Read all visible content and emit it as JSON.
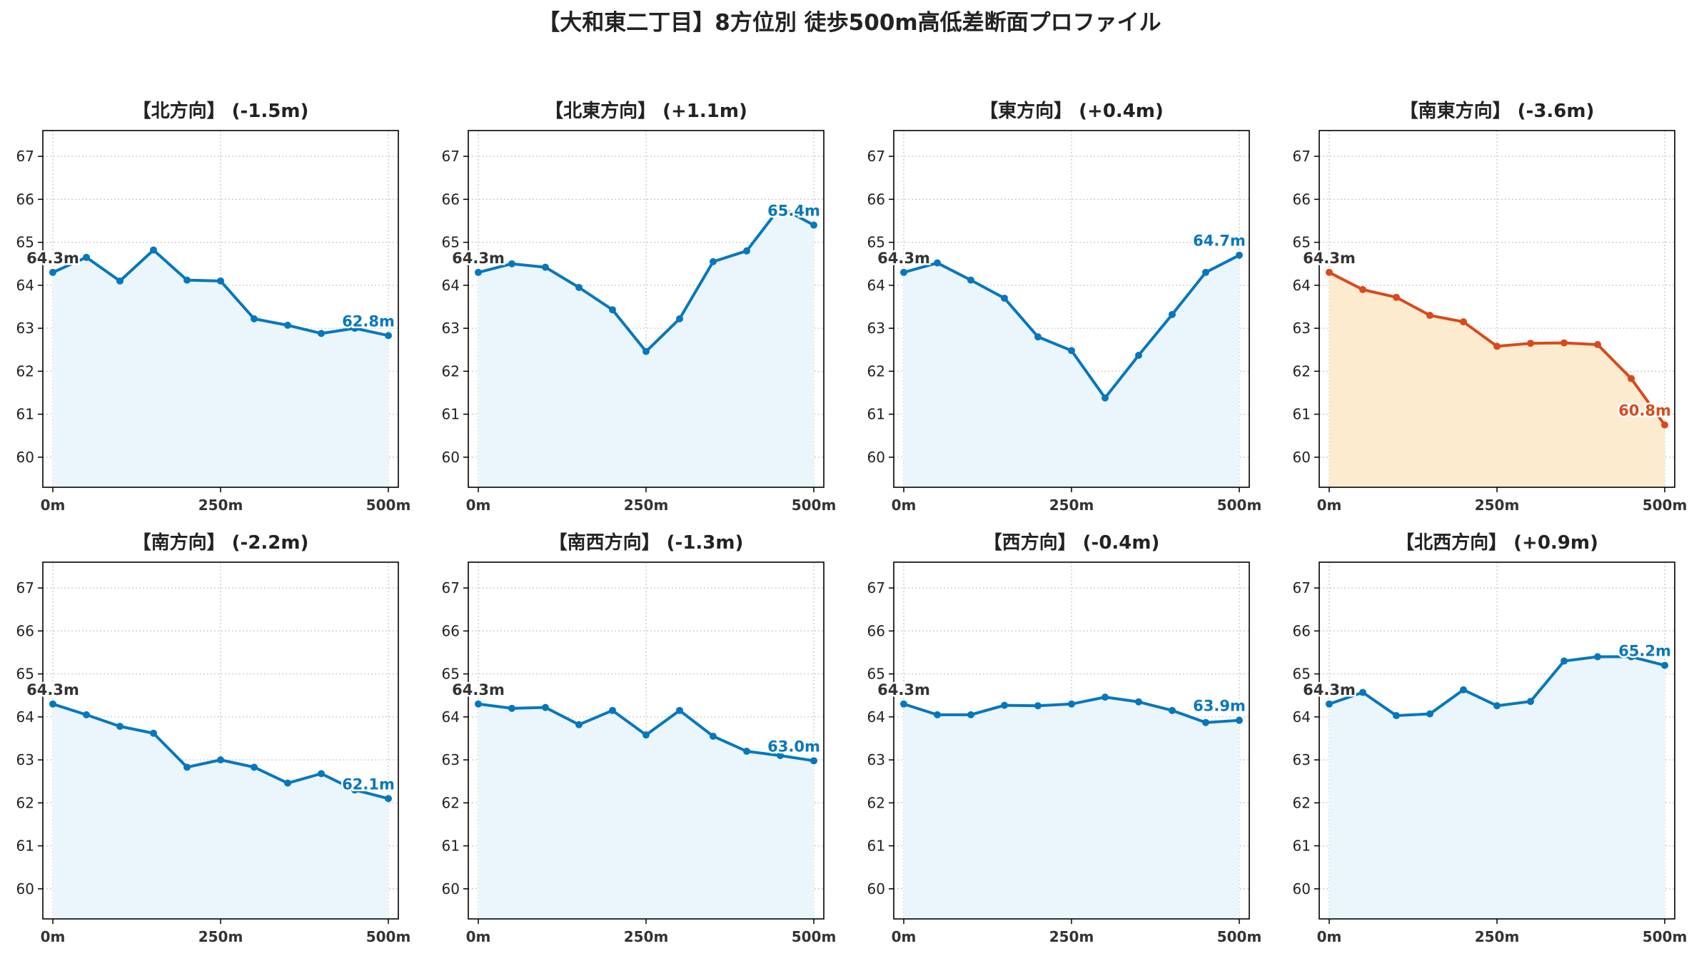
{
  "figure": {
    "title": "【大和東二丁目】8方位別 徒歩500m高低差断面プロファイル"
  },
  "colors": {
    "normal_line": "#0777bd",
    "normal_fill": "#eaf6fb",
    "highlight_line": "#d84a1b",
    "highlight_fill": "#fdebd0",
    "start_label": "#333333",
    "grid": "#c8c8c8",
    "axis": "#000000"
  },
  "chart_data": [
    {
      "type": "area",
      "title": "【北方向】 (-1.5m)",
      "x": [
        0,
        50,
        100,
        150,
        200,
        250,
        300,
        350,
        400,
        450,
        500
      ],
      "y": [
        64.3,
        64.65,
        64.1,
        64.82,
        64.12,
        64.1,
        63.22,
        63.07,
        62.88,
        63.0,
        62.83
      ],
      "start_label": "64.3m",
      "end_label": "62.8m",
      "highlight": false,
      "xticks": [
        "0m",
        "250m",
        "500m"
      ],
      "ylim": [
        59.3,
        67.6
      ],
      "yticks": [
        60,
        61,
        62,
        63,
        64,
        65,
        66,
        67
      ],
      "grid": true
    },
    {
      "type": "area",
      "title": "【北東方向】 (+1.1m)",
      "x": [
        0,
        50,
        100,
        150,
        200,
        250,
        300,
        350,
        400,
        450,
        500
      ],
      "y": [
        64.3,
        64.5,
        64.42,
        63.95,
        63.43,
        62.46,
        63.22,
        64.55,
        64.8,
        65.82,
        65.4
      ],
      "start_label": "64.3m",
      "end_label": "65.4m",
      "highlight": false,
      "xticks": [
        "0m",
        "250m",
        "500m"
      ],
      "ylim": [
        59.3,
        67.6
      ],
      "yticks": [
        60,
        61,
        62,
        63,
        64,
        65,
        66,
        67
      ],
      "grid": true
    },
    {
      "type": "area",
      "title": "【東方向】 (+0.4m)",
      "x": [
        0,
        50,
        100,
        150,
        200,
        250,
        300,
        350,
        400,
        450,
        500
      ],
      "y": [
        64.3,
        64.52,
        64.12,
        63.7,
        62.8,
        62.48,
        61.38,
        62.37,
        63.32,
        64.3,
        64.7
      ],
      "start_label": "64.3m",
      "end_label": "64.7m",
      "highlight": false,
      "xticks": [
        "0m",
        "250m",
        "500m"
      ],
      "ylim": [
        59.3,
        67.6
      ],
      "yticks": [
        60,
        61,
        62,
        63,
        64,
        65,
        66,
        67
      ],
      "grid": true
    },
    {
      "type": "area",
      "title": "【南東方向】 (-3.6m)",
      "x": [
        0,
        50,
        100,
        150,
        200,
        250,
        300,
        350,
        400,
        450,
        500
      ],
      "y": [
        64.3,
        63.9,
        63.72,
        63.3,
        63.15,
        62.58,
        62.65,
        62.66,
        62.62,
        61.83,
        60.75
      ],
      "start_label": "64.3m",
      "end_label": "60.8m",
      "highlight": true,
      "xticks": [
        "0m",
        "250m",
        "500m"
      ],
      "ylim": [
        59.3,
        67.6
      ],
      "yticks": [
        60,
        61,
        62,
        63,
        64,
        65,
        66,
        67
      ],
      "grid": true
    },
    {
      "type": "area",
      "title": "【南方向】 (-2.2m)",
      "x": [
        0,
        50,
        100,
        150,
        200,
        250,
        300,
        350,
        400,
        450,
        500
      ],
      "y": [
        64.3,
        64.05,
        63.78,
        63.62,
        62.83,
        63.0,
        62.83,
        62.46,
        62.68,
        62.3,
        62.1
      ],
      "start_label": "64.3m",
      "end_label": "62.1m",
      "highlight": false,
      "xticks": [
        "0m",
        "250m",
        "500m"
      ],
      "ylim": [
        59.3,
        67.6
      ],
      "yticks": [
        60,
        61,
        62,
        63,
        64,
        65,
        66,
        67
      ],
      "grid": true
    },
    {
      "type": "area",
      "title": "【南西方向】 (-1.3m)",
      "x": [
        0,
        50,
        100,
        150,
        200,
        250,
        300,
        350,
        400,
        450,
        500
      ],
      "y": [
        64.3,
        64.2,
        64.22,
        63.82,
        64.15,
        63.58,
        64.15,
        63.55,
        63.2,
        63.1,
        62.98
      ],
      "start_label": "64.3m",
      "end_label": "63.0m",
      "highlight": false,
      "xticks": [
        "0m",
        "250m",
        "500m"
      ],
      "ylim": [
        59.3,
        67.6
      ],
      "yticks": [
        60,
        61,
        62,
        63,
        64,
        65,
        66,
        67
      ],
      "grid": true
    },
    {
      "type": "area",
      "title": "【西方向】 (-0.4m)",
      "x": [
        0,
        50,
        100,
        150,
        200,
        250,
        300,
        350,
        400,
        450,
        500
      ],
      "y": [
        64.3,
        64.05,
        64.05,
        64.27,
        64.26,
        64.3,
        64.46,
        64.35,
        64.15,
        63.87,
        63.92
      ],
      "start_label": "64.3m",
      "end_label": "63.9m",
      "highlight": false,
      "xticks": [
        "0m",
        "250m",
        "500m"
      ],
      "ylim": [
        59.3,
        67.6
      ],
      "yticks": [
        60,
        61,
        62,
        63,
        64,
        65,
        66,
        67
      ],
      "grid": true
    },
    {
      "type": "area",
      "title": "【北西方向】 (+0.9m)",
      "x": [
        0,
        50,
        100,
        150,
        200,
        250,
        300,
        350,
        400,
        450,
        500
      ],
      "y": [
        64.3,
        64.57,
        64.03,
        64.07,
        64.63,
        64.26,
        64.36,
        65.3,
        65.4,
        65.4,
        65.2
      ],
      "start_label": "64.3m",
      "end_label": "65.2m",
      "highlight": false,
      "xticks": [
        "0m",
        "250m",
        "500m"
      ],
      "ylim": [
        59.3,
        67.6
      ],
      "yticks": [
        60,
        61,
        62,
        63,
        64,
        65,
        66,
        67
      ],
      "grid": true
    }
  ]
}
